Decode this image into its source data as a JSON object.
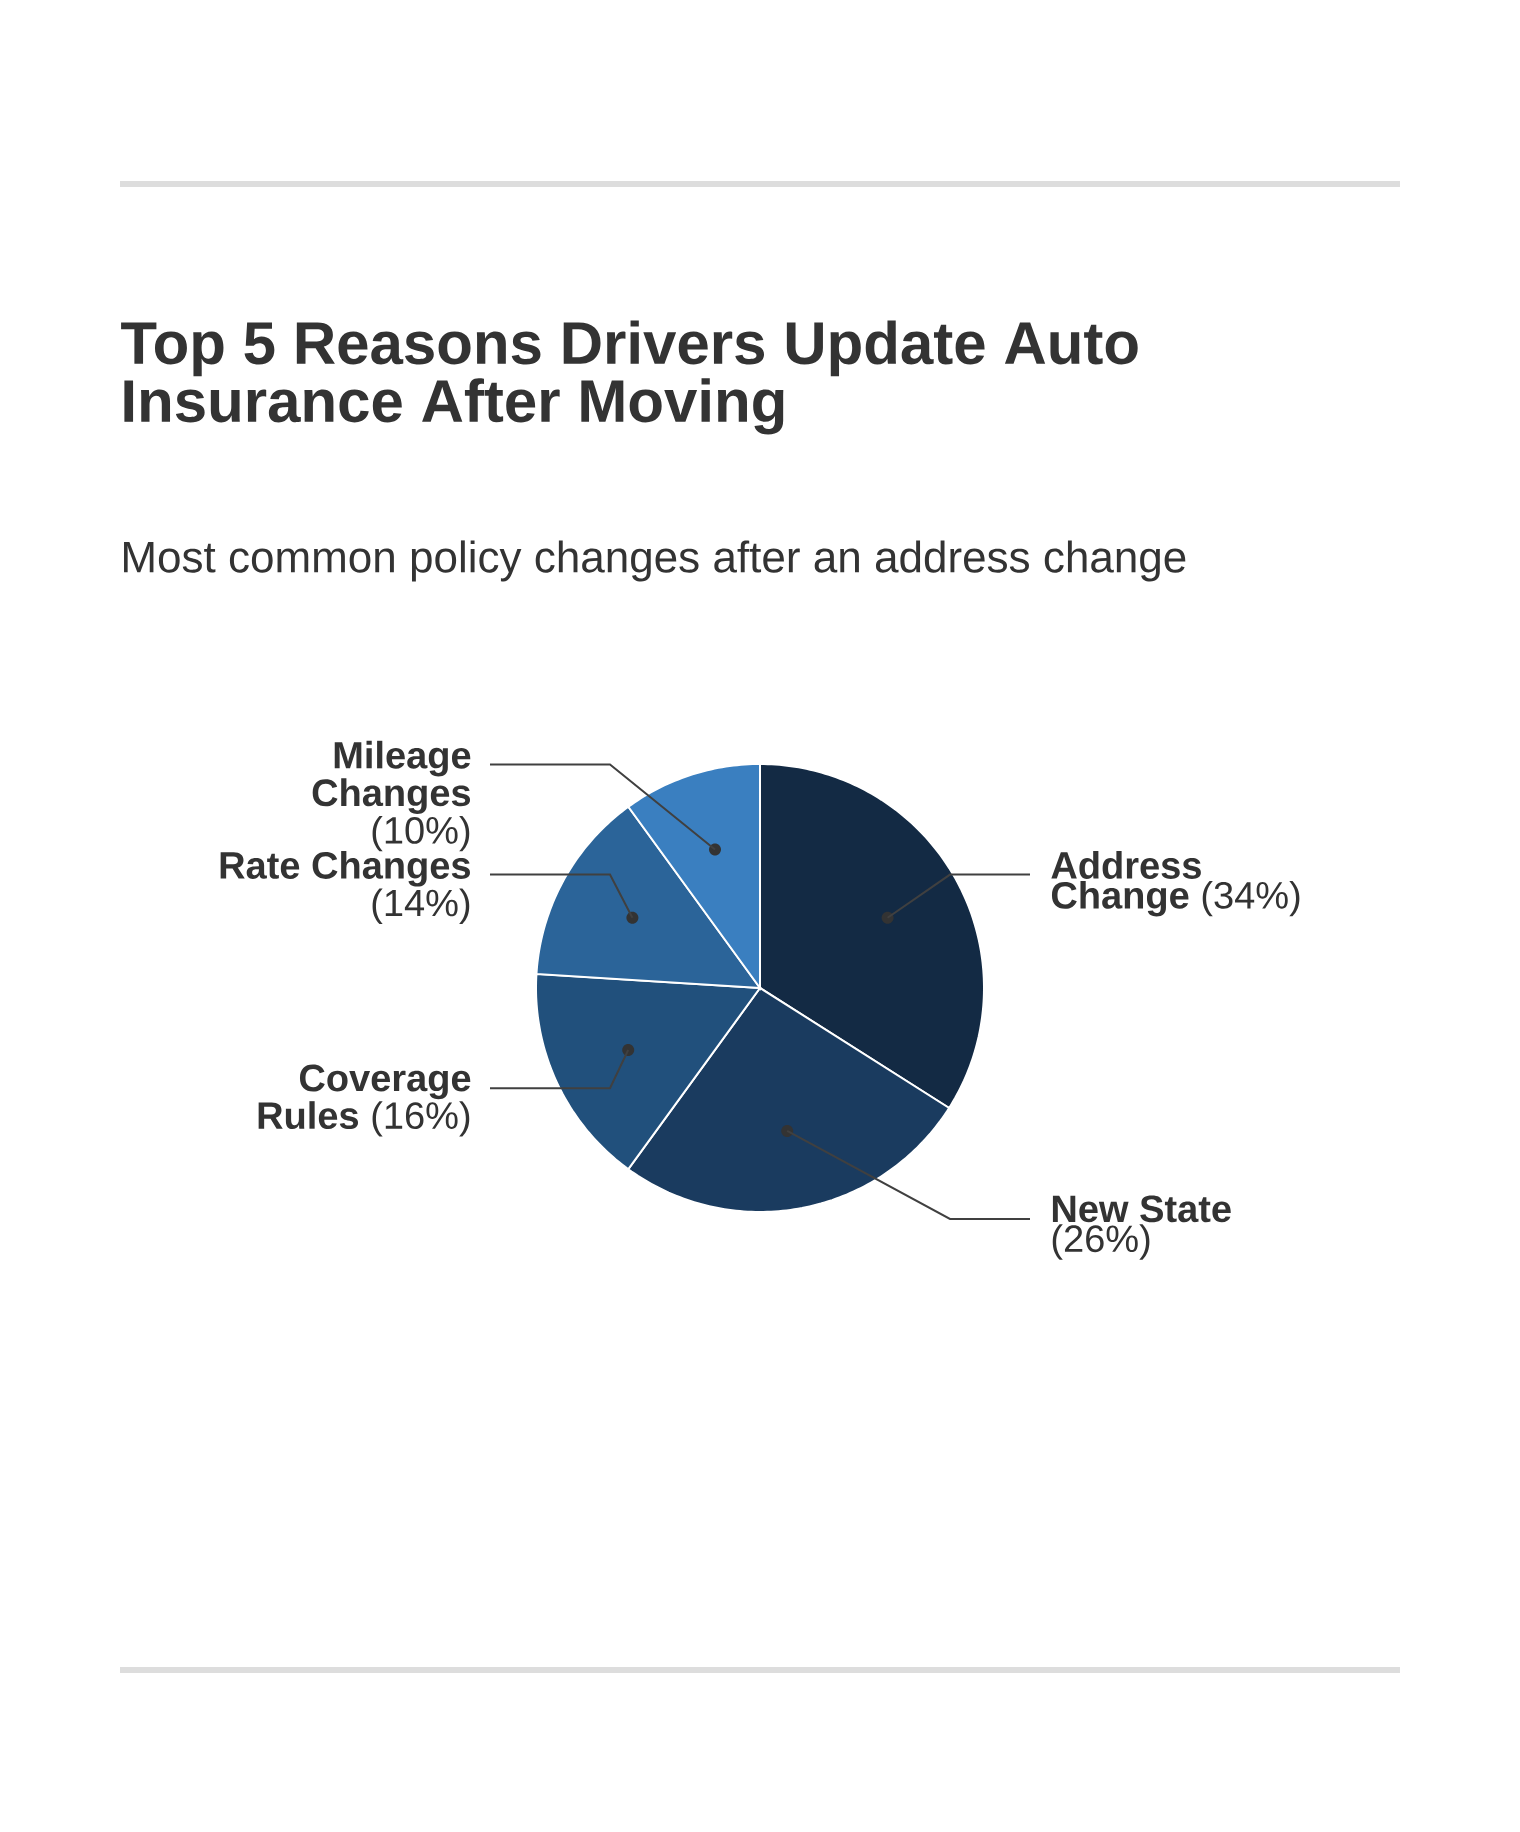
{
  "chart_data": {
    "type": "pie",
    "title": "Top 5 Reasons Drivers Update Auto Insurance After Moving",
    "subtitle": "Most common policy changes after an address change",
    "categories": [
      "Address Change",
      "New State",
      "Coverage Rules",
      "Rate Changes",
      "Mileage Changes"
    ],
    "values": [
      34,
      26,
      16,
      14,
      10
    ],
    "value_labels": [
      "(34%)",
      "(26%)",
      "(16%)",
      "(14%)",
      "(10%)"
    ],
    "colors": [
      "#132a44",
      "#1a3b5f",
      "#21507c",
      "#2b6499",
      "#3a7fc0"
    ]
  }
}
